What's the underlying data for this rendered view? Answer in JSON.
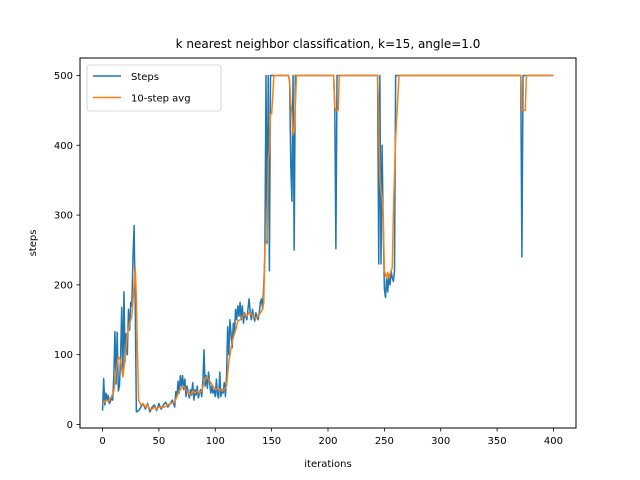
{
  "chart_data": {
    "type": "line",
    "title": "k nearest neighbor classification, k=15, angle=1.0",
    "xlabel": "iterations",
    "ylabel": "steps",
    "xlim": [
      -20,
      420
    ],
    "ylim": [
      -5,
      525
    ],
    "xticks": [
      0,
      50,
      100,
      150,
      200,
      250,
      300,
      350,
      400
    ],
    "yticks": [
      0,
      100,
      200,
      300,
      400,
      500
    ],
    "grid": false,
    "legend": {
      "placement": "upper-left"
    },
    "series": [
      {
        "name": "Steps",
        "color": "#1f77b4",
        "points": [
          [
            0,
            20
          ],
          [
            1,
            66
          ],
          [
            2,
            28
          ],
          [
            3,
            45
          ],
          [
            4,
            35
          ],
          [
            5,
            42
          ],
          [
            6,
            30
          ],
          [
            7,
            33
          ],
          [
            8,
            38
          ],
          [
            9,
            35
          ],
          [
            10,
            70
          ],
          [
            11,
            133
          ],
          [
            12,
            58
          ],
          [
            13,
            132
          ],
          [
            14,
            48
          ],
          [
            15,
            55
          ],
          [
            16,
            95
          ],
          [
            17,
            168
          ],
          [
            18,
            70
          ],
          [
            19,
            190
          ],
          [
            20,
            90
          ],
          [
            21,
            130
          ],
          [
            22,
            100
          ],
          [
            23,
            165
          ],
          [
            24,
            135
          ],
          [
            25,
            175
          ],
          [
            26,
            170
          ],
          [
            27,
            240
          ],
          [
            28,
            285
          ],
          [
            29,
            170
          ],
          [
            30,
            18
          ],
          [
            32,
            20
          ],
          [
            34,
            25
          ],
          [
            36,
            30
          ],
          [
            38,
            22
          ],
          [
            40,
            30
          ],
          [
            42,
            18
          ],
          [
            44,
            25
          ],
          [
            46,
            28
          ],
          [
            48,
            20
          ],
          [
            50,
            30
          ],
          [
            52,
            22
          ],
          [
            54,
            28
          ],
          [
            56,
            32
          ],
          [
            58,
            25
          ],
          [
            60,
            30
          ],
          [
            62,
            35
          ],
          [
            64,
            25
          ],
          [
            65,
            47
          ],
          [
            66,
            40
          ],
          [
            67,
            62
          ],
          [
            68,
            45
          ],
          [
            69,
            70
          ],
          [
            70,
            55
          ],
          [
            71,
            70
          ],
          [
            72,
            50
          ],
          [
            73,
            65
          ],
          [
            74,
            40
          ],
          [
            75,
            55
          ],
          [
            76,
            45
          ],
          [
            77,
            38
          ],
          [
            78,
            50
          ],
          [
            79,
            42
          ],
          [
            80,
            60
          ],
          [
            81,
            35
          ],
          [
            82,
            50
          ],
          [
            83,
            42
          ],
          [
            84,
            55
          ],
          [
            85,
            38
          ],
          [
            86,
            45
          ],
          [
            87,
            50
          ],
          [
            88,
            40
          ],
          [
            89,
            62
          ],
          [
            90,
            107
          ],
          [
            91,
            55
          ],
          [
            92,
            70
          ],
          [
            93,
            52
          ],
          [
            94,
            75
          ],
          [
            95,
            60
          ],
          [
            96,
            45
          ],
          [
            97,
            55
          ],
          [
            98,
            45
          ],
          [
            99,
            50
          ],
          [
            100,
            40
          ],
          [
            101,
            65
          ],
          [
            102,
            42
          ],
          [
            103,
            38
          ],
          [
            104,
            75
          ],
          [
            105,
            40
          ],
          [
            106,
            50
          ],
          [
            107,
            45
          ],
          [
            108,
            60
          ],
          [
            109,
            40
          ],
          [
            110,
            70
          ],
          [
            111,
            140
          ],
          [
            112,
            100
          ],
          [
            113,
            150
          ],
          [
            114,
            130
          ],
          [
            115,
            110
          ],
          [
            116,
            145
          ],
          [
            117,
            130
          ],
          [
            118,
            165
          ],
          [
            119,
            150
          ],
          [
            120,
            170
          ],
          [
            121,
            155
          ],
          [
            122,
            175
          ],
          [
            123,
            150
          ],
          [
            124,
            170
          ],
          [
            125,
            145
          ],
          [
            126,
            160
          ],
          [
            127,
            155
          ],
          [
            128,
            150
          ],
          [
            129,
            165
          ],
          [
            130,
            180
          ],
          [
            131,
            160
          ],
          [
            132,
            150
          ],
          [
            133,
            165
          ],
          [
            134,
            155
          ],
          [
            135,
            148
          ],
          [
            136,
            160
          ],
          [
            137,
            155
          ],
          [
            138,
            150
          ],
          [
            139,
            160
          ],
          [
            140,
            175
          ],
          [
            141,
            180
          ],
          [
            142,
            165
          ],
          [
            143,
            200
          ],
          [
            144,
            240
          ],
          [
            145,
            500
          ],
          [
            146,
            260
          ],
          [
            147,
            500
          ],
          [
            148,
            220
          ],
          [
            149,
            500
          ],
          [
            150,
            500
          ],
          [
            152,
            500
          ],
          [
            155,
            500
          ],
          [
            160,
            500
          ],
          [
            165,
            500
          ],
          [
            166,
            490
          ],
          [
            167,
            370
          ],
          [
            168,
            320
          ],
          [
            169,
            500
          ],
          [
            170,
            250
          ],
          [
            171,
            500
          ],
          [
            173,
            500
          ],
          [
            180,
            500
          ],
          [
            190,
            500
          ],
          [
            200,
            500
          ],
          [
            205,
            500
          ],
          [
            206,
            455
          ],
          [
            207,
            252
          ],
          [
            208,
            500
          ],
          [
            210,
            500
          ],
          [
            220,
            500
          ],
          [
            230,
            500
          ],
          [
            240,
            500
          ],
          [
            244,
            500
          ],
          [
            245,
            230
          ],
          [
            246,
            500
          ],
          [
            247,
            230
          ],
          [
            248,
            400
          ],
          [
            249,
            280
          ],
          [
            250,
            195
          ],
          [
            251,
            182
          ],
          [
            252,
            210
          ],
          [
            253,
            190
          ],
          [
            254,
            215
          ],
          [
            255,
            200
          ],
          [
            256,
            220
          ],
          [
            257,
            210
          ],
          [
            258,
            205
          ],
          [
            259,
            220
          ],
          [
            260,
            500
          ],
          [
            270,
            500
          ],
          [
            280,
            500
          ],
          [
            300,
            500
          ],
          [
            320,
            500
          ],
          [
            340,
            500
          ],
          [
            360,
            500
          ],
          [
            370,
            500
          ],
          [
            371,
            500
          ],
          [
            372,
            240
          ],
          [
            373,
            500
          ],
          [
            380,
            500
          ],
          [
            390,
            500
          ],
          [
            400,
            500
          ]
        ]
      },
      {
        "name": "10-step avg",
        "color": "#ff7f0e",
        "points": [
          [
            0,
            30
          ],
          [
            3,
            35
          ],
          [
            5,
            33
          ],
          [
            8,
            40
          ],
          [
            10,
            48
          ],
          [
            12,
            75
          ],
          [
            14,
            97
          ],
          [
            16,
            92
          ],
          [
            18,
            68
          ],
          [
            20,
            95
          ],
          [
            22,
            130
          ],
          [
            24,
            145
          ],
          [
            26,
            155
          ],
          [
            28,
            200
          ],
          [
            29,
            225
          ],
          [
            30,
            180
          ],
          [
            31,
            100
          ],
          [
            32,
            35
          ],
          [
            34,
            28
          ],
          [
            36,
            30
          ],
          [
            38,
            25
          ],
          [
            40,
            28
          ],
          [
            42,
            22
          ],
          [
            44,
            22
          ],
          [
            46,
            25
          ],
          [
            48,
            22
          ],
          [
            50,
            25
          ],
          [
            55,
            25
          ],
          [
            60,
            30
          ],
          [
            64,
            32
          ],
          [
            66,
            40
          ],
          [
            68,
            48
          ],
          [
            70,
            52
          ],
          [
            72,
            55
          ],
          [
            74,
            50
          ],
          [
            76,
            45
          ],
          [
            78,
            42
          ],
          [
            80,
            48
          ],
          [
            82,
            45
          ],
          [
            84,
            48
          ],
          [
            86,
            45
          ],
          [
            88,
            48
          ],
          [
            90,
            60
          ],
          [
            92,
            68
          ],
          [
            94,
            65
          ],
          [
            96,
            60
          ],
          [
            98,
            55
          ],
          [
            100,
            50
          ],
          [
            102,
            52
          ],
          [
            104,
            50
          ],
          [
            106,
            48
          ],
          [
            108,
            50
          ],
          [
            110,
            55
          ],
          [
            112,
            90
          ],
          [
            114,
            110
          ],
          [
            116,
            125
          ],
          [
            118,
            135
          ],
          [
            120,
            148
          ],
          [
            122,
            150
          ],
          [
            124,
            155
          ],
          [
            126,
            158
          ],
          [
            128,
            155
          ],
          [
            130,
            160
          ],
          [
            132,
            158
          ],
          [
            134,
            155
          ],
          [
            136,
            152
          ],
          [
            138,
            155
          ],
          [
            140,
            160
          ],
          [
            142,
            165
          ],
          [
            143,
            175
          ],
          [
            144,
            255
          ],
          [
            146,
            265
          ],
          [
            147,
            380
          ],
          [
            148,
            390
          ],
          [
            149,
            445
          ],
          [
            150,
            445
          ],
          [
            151,
            470
          ],
          [
            152,
            500
          ],
          [
            160,
            500
          ],
          [
            165,
            500
          ],
          [
            166,
            490
          ],
          [
            167,
            460
          ],
          [
            168,
            445
          ],
          [
            169,
            415
          ],
          [
            170,
            420
          ],
          [
            171,
            455
          ],
          [
            172,
            500
          ],
          [
            180,
            500
          ],
          [
            200,
            500
          ],
          [
            205,
            500
          ],
          [
            206,
            455
          ],
          [
            207,
            450
          ],
          [
            208,
            450
          ],
          [
            209,
            450
          ],
          [
            210,
            500
          ],
          [
            220,
            500
          ],
          [
            240,
            500
          ],
          [
            244,
            500
          ],
          [
            245,
            440
          ],
          [
            246,
            350
          ],
          [
            247,
            335
          ],
          [
            248,
            325
          ],
          [
            249,
            300
          ],
          [
            250,
            220
          ],
          [
            251,
            215
          ],
          [
            252,
            210
          ],
          [
            253,
            218
          ],
          [
            254,
            210
          ],
          [
            255,
            215
          ],
          [
            256,
            220
          ],
          [
            257,
            225
          ],
          [
            258,
            300
          ],
          [
            259,
            360
          ],
          [
            260,
            410
          ],
          [
            261,
            440
          ],
          [
            262,
            470
          ],
          [
            263,
            500
          ],
          [
            270,
            500
          ],
          [
            300,
            500
          ],
          [
            340,
            500
          ],
          [
            370,
            500
          ],
          [
            371,
            500
          ],
          [
            372,
            450
          ],
          [
            373,
            450
          ],
          [
            374,
            450
          ],
          [
            375,
            450
          ],
          [
            376,
            500
          ],
          [
            380,
            500
          ],
          [
            400,
            500
          ]
        ]
      }
    ]
  }
}
